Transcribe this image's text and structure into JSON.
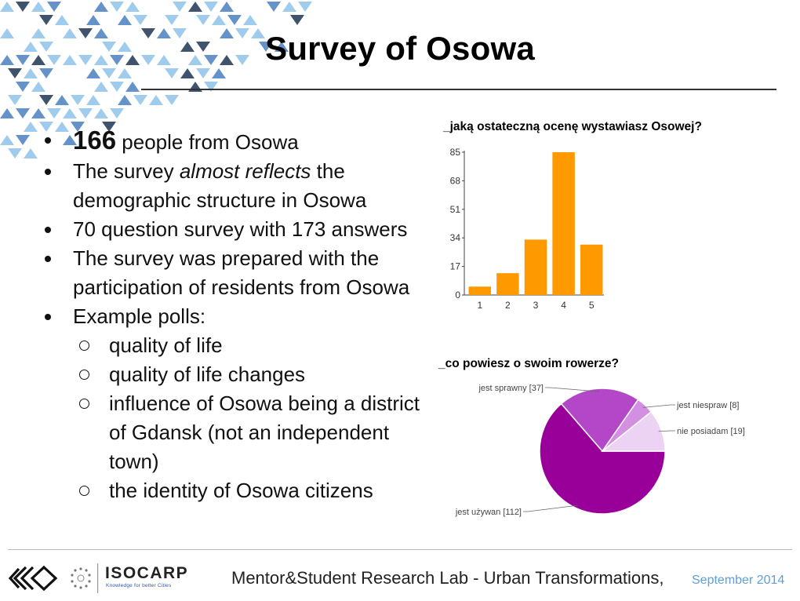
{
  "slide": {
    "title": "Survey of Osowa"
  },
  "bullets": {
    "b1_number": "166",
    "b1_rest": " people from Osowa",
    "b2_pre": "The survey ",
    "b2_italic": "almost reflects",
    "b2_post": " the demographic structure in Osowa",
    "b3": "70 question survey with 173 answers",
    "b4": "The survey was prepared with the participation of residents from Osowa",
    "b5": "Example polls:",
    "sub": [
      "quality of life",
      "quality of life changes",
      "influence of Osowa being a district of Gdansk (not an independent town)",
      "the identity of Osowa citizens"
    ]
  },
  "chart_data": [
    {
      "type": "bar",
      "title": "_jaką ostateczną ocenę wystawiasz Osowej?",
      "categories": [
        "1",
        "2",
        "3",
        "4",
        "5"
      ],
      "values": [
        5,
        13,
        33,
        85,
        30
      ],
      "yticks": [
        0,
        17,
        34,
        51,
        68,
        85
      ],
      "ylim": [
        0,
        85
      ],
      "color": "#ff9900",
      "grid": false
    },
    {
      "type": "pie",
      "title": "_co powiesz o swoim rowerze?",
      "slices": [
        {
          "label": "jest używan [112]",
          "value": 112,
          "color": "#990099"
        },
        {
          "label": "jest sprawny [37]",
          "value": 37,
          "color": "#b447c7"
        },
        {
          "label": "jest niespraw [8]",
          "value": 8,
          "color": "#d38fe2"
        },
        {
          "label": "nie posiadam [19]",
          "value": 19,
          "color": "#ecd3f3"
        }
      ]
    }
  ],
  "footer": {
    "org": "ISOCARP",
    "org_tagline": "Knowledge for better Cities",
    "text": "Mentor&Student Research Lab - Urban Transformations,",
    "date": "September 2014"
  },
  "colors": {
    "deco_light": "#8ec3ea",
    "deco_mid": "#4a7fbf",
    "deco_dark": "#1e3553"
  }
}
